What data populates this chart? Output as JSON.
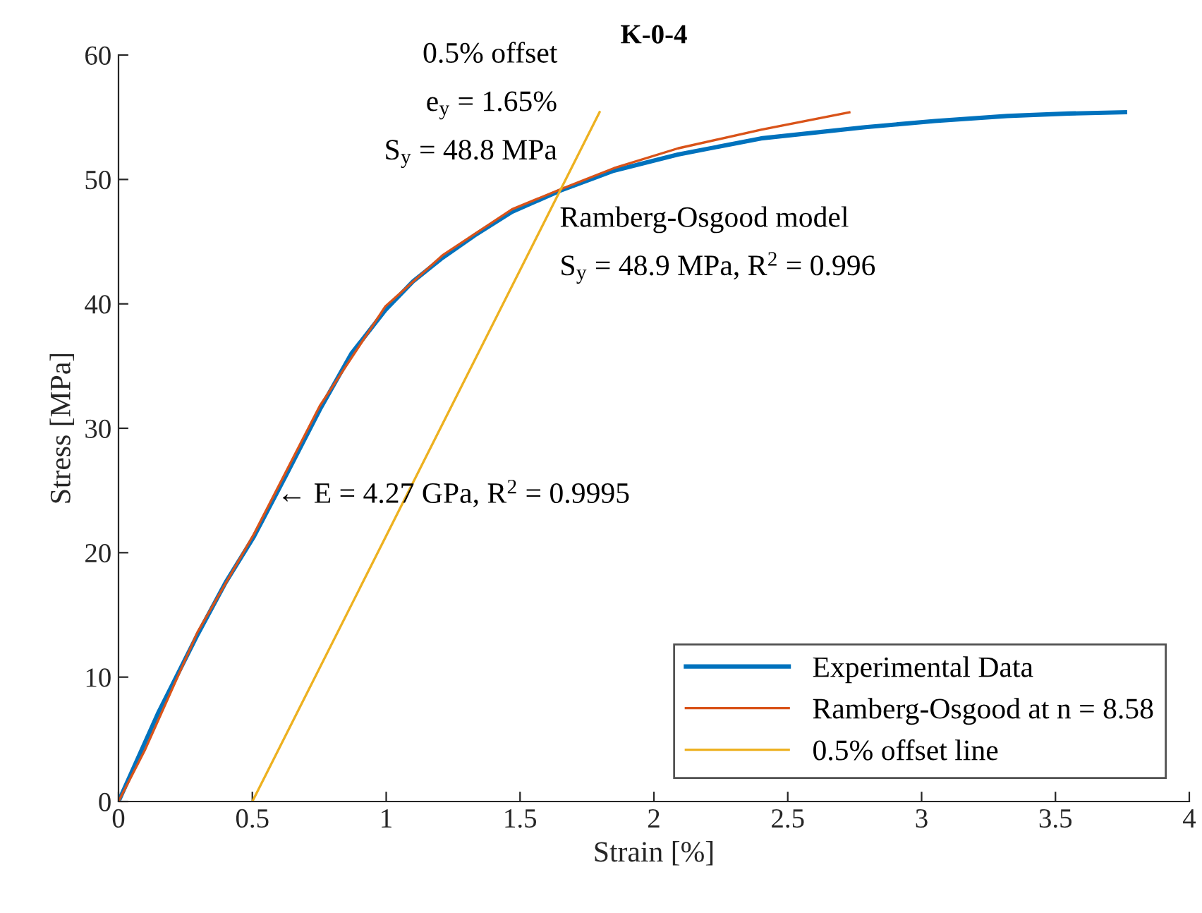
{
  "chart_data": {
    "type": "line",
    "title": "K-0-4",
    "xlabel": "Strain [%]",
    "ylabel": "Stress [MPa]",
    "xlim": [
      0,
      4
    ],
    "xticks": [
      0,
      0.5,
      1,
      1.5,
      2,
      2.5,
      3,
      3.5,
      4
    ],
    "ylim": [
      0,
      60
    ],
    "yticks": [
      0,
      10,
      20,
      30,
      40,
      50,
      60
    ],
    "grid": false,
    "legend": "bottom right",
    "series": [
      {
        "name": "Experimental Data",
        "color": "#0072bd",
        "x": [
          0,
          0.05,
          0.15,
          0.295,
          0.4,
          0.506,
          0.63,
          0.752,
          0.87,
          0.997,
          1.1,
          1.21,
          1.33,
          1.47,
          1.65,
          1.85,
          2.09,
          2.4,
          2.79,
          3.05,
          3.32,
          3.55,
          3.76
        ],
        "values": [
          0,
          2.4,
          7.2,
          13.4,
          17.6,
          21.3,
          26.4,
          31.5,
          36.0,
          39.5,
          41.8,
          43.7,
          45.5,
          47.4,
          49.1,
          50.7,
          52.0,
          53.3,
          54.2,
          54.7,
          55.1,
          55.3,
          55.4
        ]
      },
      {
        "name": "Ramberg-Osgood at n = 8.58",
        "color": "#d95319",
        "x": [
          0,
          0.1,
          0.295,
          0.506,
          0.752,
          0.997,
          1.21,
          1.47,
          1.65,
          1.85,
          2.09,
          2.4,
          2.73
        ],
        "values": [
          0,
          4.2,
          13.6,
          21.5,
          31.8,
          39.8,
          43.9,
          47.6,
          49.2,
          50.9,
          52.5,
          54.0,
          55.4
        ]
      },
      {
        "name": "0.5% offset line",
        "color": "#edb120",
        "x": [
          0.5,
          1.797
        ],
        "values": [
          0,
          55.4
        ]
      }
    ],
    "annotations": [
      "0.5% offset",
      "e$_{y}$ = 1.65%",
      "S$_{y}$ = 48.8 MPa",
      "Ramberg-Osgood model",
      "S$_{y}$ = 48.9 MPa, R$^{2}$ = 0.996",
      "← E = 4.27 GPa, R$^{2}$ = 0.9995"
    ]
  }
}
